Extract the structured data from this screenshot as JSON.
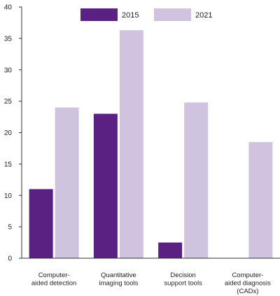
{
  "chart_data": {
    "type": "bar",
    "title": "",
    "xlabel": "",
    "ylabel": "",
    "ylim": [
      0,
      40
    ],
    "yticks": [
      0,
      5,
      10,
      15,
      20,
      25,
      30,
      35,
      40
    ],
    "grid": false,
    "legend_position": "top",
    "categories": [
      [
        "Computer-",
        "aided detection"
      ],
      [
        "Quantitative",
        "imaging tools"
      ],
      [
        "Decision",
        "support tools"
      ],
      [
        "Computer-",
        "aided diagnosis",
        "(CADx)"
      ]
    ],
    "series": [
      {
        "name": "2015",
        "color": "#5b2182",
        "values": [
          11,
          23,
          2.5,
          null
        ]
      },
      {
        "name": "2021",
        "color": "#cfc3e0",
        "values": [
          24,
          36.3,
          24.8,
          18.5
        ]
      }
    ]
  }
}
